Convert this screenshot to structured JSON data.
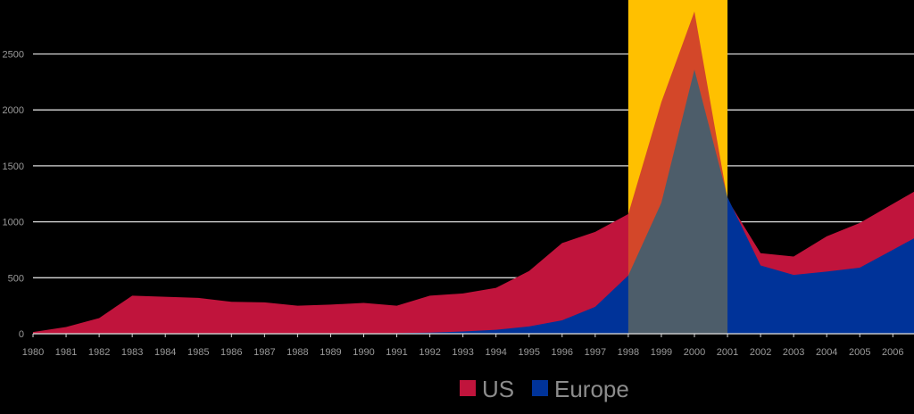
{
  "chart_data": {
    "type": "area",
    "title": "",
    "xlabel": "",
    "ylabel": "",
    "x": [
      "1980",
      "1981",
      "1982",
      "1983",
      "1984",
      "1985",
      "1986",
      "1987",
      "1988",
      "1989",
      "1990",
      "1991",
      "1992",
      "1993",
      "1994",
      "1995",
      "1996",
      "1997",
      "1998",
      "1999",
      "2000",
      "2001",
      "2002",
      "2003",
      "2004",
      "2005",
      "2006"
    ],
    "series": [
      {
        "name": "US",
        "color": "#c0143c",
        "values": [
          15,
          60,
          140,
          340,
          330,
          320,
          285,
          280,
          250,
          260,
          275,
          250,
          340,
          360,
          410,
          560,
          810,
          910,
          1070,
          2070,
          2880,
          1200,
          720,
          690,
          870,
          990,
          1160
        ]
      },
      {
        "name": "Europe",
        "color": "#003399",
        "values": [
          0,
          0,
          0,
          0,
          0,
          0,
          0,
          0,
          0,
          0,
          0,
          5,
          10,
          20,
          35,
          65,
          120,
          240,
          520,
          1170,
          2360,
          1220,
          610,
          525,
          555,
          590,
          750
        ]
      }
    ],
    "y_ticks": [
      "0",
      "500",
      "1000",
      "1500",
      "2000",
      "2500"
    ],
    "ylim": [
      0,
      3000
    ],
    "grid": true,
    "highlight": {
      "from": "1998",
      "to": "2001",
      "color": "#ffc000"
    },
    "legend": "bottom-center",
    "background": "#000000"
  }
}
